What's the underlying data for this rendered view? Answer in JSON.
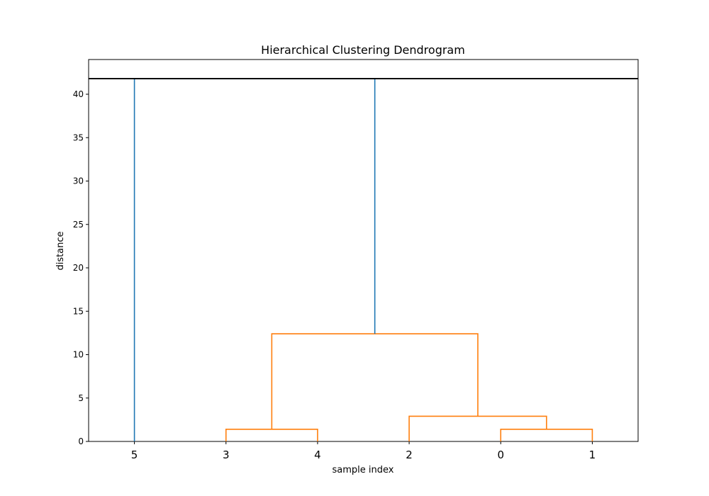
{
  "chart_data": {
    "type": "dendrogram",
    "title": "Hierarchical Clustering Dendrogram",
    "xlabel": "sample index",
    "ylabel": "distance",
    "ylim": [
      0,
      44
    ],
    "yticks": [
      0,
      5,
      10,
      15,
      20,
      25,
      30,
      35,
      40
    ],
    "leaf_order": [
      "5",
      "3",
      "4",
      "2",
      "0",
      "1"
    ],
    "cut_height": 41.8,
    "merges": [
      {
        "left": "0",
        "right": "1",
        "height": 1.4,
        "color": "#ff7f0e"
      },
      {
        "left": "3",
        "right": "4",
        "height": 1.4,
        "color": "#ff7f0e"
      },
      {
        "left": "2",
        "right": "(0,1)",
        "height": 2.9,
        "color": "#ff7f0e"
      },
      {
        "left": "(3,4)",
        "right": "(2,0,1)",
        "height": 12.4,
        "color": "#ff7f0e"
      },
      {
        "left": "5",
        "right": "(3,4,2,0,1)",
        "height": 41.8,
        "color": "#1f77b4"
      }
    ],
    "grid": false
  }
}
